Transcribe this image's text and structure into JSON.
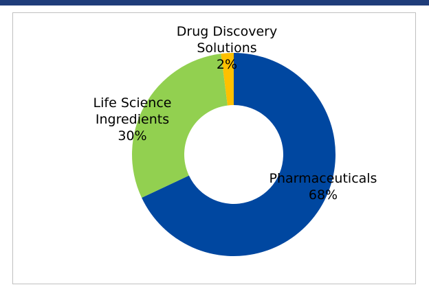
{
  "chart_data": {
    "type": "donut",
    "categories": [
      "Pharmaceuticals",
      "Life Science Ingredients",
      "Drug Discovery Solutions"
    ],
    "values": [
      68,
      30,
      2
    ],
    "value_labels": [
      "68%",
      "30%",
      "2%"
    ],
    "colors": [
      "#0047a0",
      "#92d050",
      "#ffc000"
    ]
  }
}
